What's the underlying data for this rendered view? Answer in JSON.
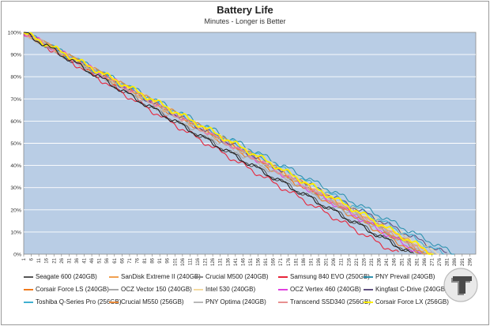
{
  "chart_data": {
    "type": "line",
    "title": "Battery Life",
    "subtitle": "Minutes - Longer is Better",
    "xlabel": "",
    "ylabel": "",
    "x_ticks": [
      1,
      6,
      11,
      16,
      21,
      26,
      31,
      36,
      41,
      46,
      51,
      56,
      61,
      66,
      71,
      76,
      81,
      86,
      91,
      96,
      101,
      106,
      111,
      116,
      121,
      126,
      131,
      136,
      141,
      146,
      151,
      156,
      161,
      166,
      171,
      176,
      181,
      186,
      191,
      196,
      201,
      206,
      211,
      216,
      221,
      226,
      231,
      236,
      241,
      246,
      251,
      256,
      261,
      266,
      271,
      276,
      281,
      286,
      291,
      296
    ],
    "y_ticks": [
      "0%",
      "10%",
      "20%",
      "30%",
      "40%",
      "50%",
      "60%",
      "70%",
      "80%",
      "90%",
      "100%"
    ],
    "xlim": [
      1,
      300
    ],
    "ylim": [
      0,
      100
    ],
    "grid": true,
    "legend_position": "bottom",
    "series": [
      {
        "name": "Seagate 600 (240GB)",
        "color": "#555555",
        "end": 259
      },
      {
        "name": "SanDisk Extreme II (240GB)",
        "color": "#f0a050",
        "end": 271
      },
      {
        "name": "Crucial M500 (240GB)",
        "color": "#8c8c8c",
        "end": 266
      },
      {
        "name": "Samsung 840 EVO (250GB)",
        "color": "#e8253a",
        "end": 249
      },
      {
        "name": "PNY Prevail (240GB)",
        "color": "#2f93b0",
        "end": 286
      },
      {
        "name": "Corsair Force LS (240GB)",
        "color": "#f07a1c",
        "end": 262
      },
      {
        "name": "OCZ Vector 150 (240GB)",
        "color": "#a9a9a9",
        "end": 269
      },
      {
        "name": "Intel 530 (240GB)",
        "color": "#f5dba0",
        "end": 276
      },
      {
        "name": "OCZ Vertex 460 (240GB)",
        "color": "#e040e0",
        "end": 264
      },
      {
        "name": "Kingfast C-Drive (240GB)",
        "color": "#605080",
        "end": 281
      },
      {
        "name": "Toshiba Q-Series Pro (256GB)",
        "color": "#40b0d0",
        "end": 279
      },
      {
        "name": "Crucial M550 (256GB)",
        "color": "#e88a3a",
        "end": 268
      },
      {
        "name": "PNY Optima (240GB)",
        "color": "#b8b8b8",
        "end": 274
      },
      {
        "name": "Transcend SSD340 (256GB)",
        "color": "#e89090",
        "end": 270
      },
      {
        "name": "Corsair Force LX (256GB)",
        "color": "#ffef00",
        "end": 272
      },
      {
        "name": "",
        "color": "#222222",
        "end": 258
      }
    ]
  },
  "legend": {
    "items": [
      "Seagate 600 (240GB)",
      "SanDisk Extreme II (240GB)",
      "Crucial M500 (240GB)",
      "Samsung 840 EVO (250GB)",
      "PNY Prevail (240GB)",
      "Corsair Force LS (240GB)",
      "OCZ Vector 150 (240GB)",
      "Intel 530 (240GB)",
      "OCZ Vertex 460 (240GB)",
      "Kingfast C-Drive (240GB)",
      "Toshiba Q-Series Pro (256GB)",
      "Crucial M550 (256GB)",
      "PNY Optima (240GB)",
      "Transcend SSD340 (256GB)",
      "Corsair Force LX (256GB)"
    ]
  },
  "colors": {
    "plot_background": "#b9cde5",
    "gridline": "#ffffff"
  },
  "logo": {
    "icon": "tweaktown-logo-icon"
  }
}
